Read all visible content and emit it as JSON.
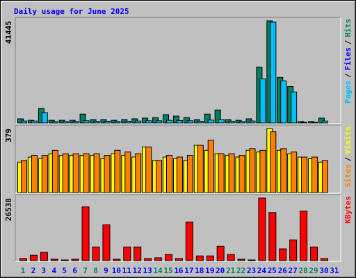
{
  "chart_data": [
    {
      "type": "bar",
      "title": "Daily usage for June 2025",
      "title_color": "#0000FF",
      "ylim": [
        0,
        41445
      ],
      "yticks": [
        41445
      ],
      "legend": [
        {
          "text": "Pages",
          "color": "#00C0FF"
        },
        {
          "text": "/",
          "color": "#000000"
        },
        {
          "text": "Files",
          "color": "#0000FF"
        },
        {
          "text": "/",
          "color": "#000000"
        },
        {
          "text": "Hits",
          "color": "#00805C"
        }
      ],
      "series": [
        {
          "color": "#00805C",
          "values": [
            1700,
            1100,
            5900,
            1100,
            1100,
            1100,
            3600,
            1400,
            1400,
            1100,
            1400,
            1700,
            2000,
            2200,
            3400,
            2800,
            2200,
            1400,
            3600,
            5300,
            1400,
            1100,
            1700,
            22700,
            41445,
            18500,
            14800,
            600,
            600,
            2000,
            0
          ]
        },
        {
          "color": "#00C0FF",
          "values": [
            800,
            800,
            4200,
            600,
            600,
            600,
            900,
            700,
            700,
            600,
            700,
            800,
            900,
            900,
            1100,
            1000,
            900,
            700,
            1200,
            1400,
            700,
            600,
            800,
            17900,
            40900,
            17100,
            12600,
            300,
            300,
            800,
            0
          ]
        }
      ]
    },
    {
      "type": "bar",
      "ylim": [
        0,
        379
      ],
      "yticks": [
        379
      ],
      "legend": [
        {
          "text": "Sites",
          "color": "#FF8000"
        },
        {
          "text": "/",
          "color": "#000000"
        },
        {
          "text": "Visits",
          "color": "#FFFF00"
        }
      ],
      "series": [
        {
          "color": "#FFFF00",
          "values": [
            180,
            210,
            200,
            230,
            220,
            220,
            220,
            220,
            200,
            230,
            220,
            210,
            270,
            190,
            210,
            200,
            190,
            280,
            250,
            230,
            220,
            210,
            250,
            240,
            379,
            250,
            230,
            210,
            200,
            180,
            0
          ]
        },
        {
          "color": "#FF8000",
          "values": [
            190,
            220,
            220,
            250,
            230,
            230,
            230,
            230,
            220,
            250,
            240,
            230,
            270,
            190,
            220,
            210,
            220,
            280,
            310,
            230,
            230,
            220,
            260,
            250,
            360,
            260,
            240,
            210,
            210,
            190,
            0
          ]
        }
      ]
    },
    {
      "type": "bar",
      "ylim": [
        0,
        26538
      ],
      "yticks": [
        26538
      ],
      "legend": [
        {
          "text": "KBytes",
          "color": "#FF0000"
        }
      ],
      "categories": [
        "1",
        "2",
        "3",
        "4",
        "5",
        "6",
        "7",
        "8",
        "9",
        "10",
        "11",
        "12",
        "13",
        "14",
        "15",
        "16",
        "17",
        "18",
        "19",
        "20",
        "21",
        "22",
        "23",
        "24",
        "25",
        "26",
        "27",
        "28",
        "29",
        "30",
        "31"
      ],
      "category_colors": [
        "#00805C",
        "#0000FF",
        "#0000FF",
        "#0000FF",
        "#0000FF",
        "#0000FF",
        "#00805C",
        "#00805C",
        "#0000FF",
        "#0000FF",
        "#0000FF",
        "#0000FF",
        "#0000FF",
        "#00805C",
        "#00805C",
        "#0000FF",
        "#0000FF",
        "#0000FF",
        "#0000FF",
        "#0000FF",
        "#00805C",
        "#00805C",
        "#0000FF",
        "#0000FF",
        "#0000FF",
        "#0000FF",
        "#0000FF",
        "#00805C",
        "#00805C",
        "#0000FF",
        "#0000FF"
      ],
      "series": [
        {
          "color": "#FF0000",
          "values": [
            900,
            2300,
            3500,
            600,
            300,
            600,
            22800,
            5800,
            15200,
            600,
            5800,
            5800,
            900,
            1200,
            2600,
            900,
            16400,
            2000,
            2000,
            6100,
            2600,
            600,
            300,
            26538,
            20400,
            5000,
            8800,
            21000,
            5800,
            900,
            0
          ]
        }
      ]
    }
  ]
}
